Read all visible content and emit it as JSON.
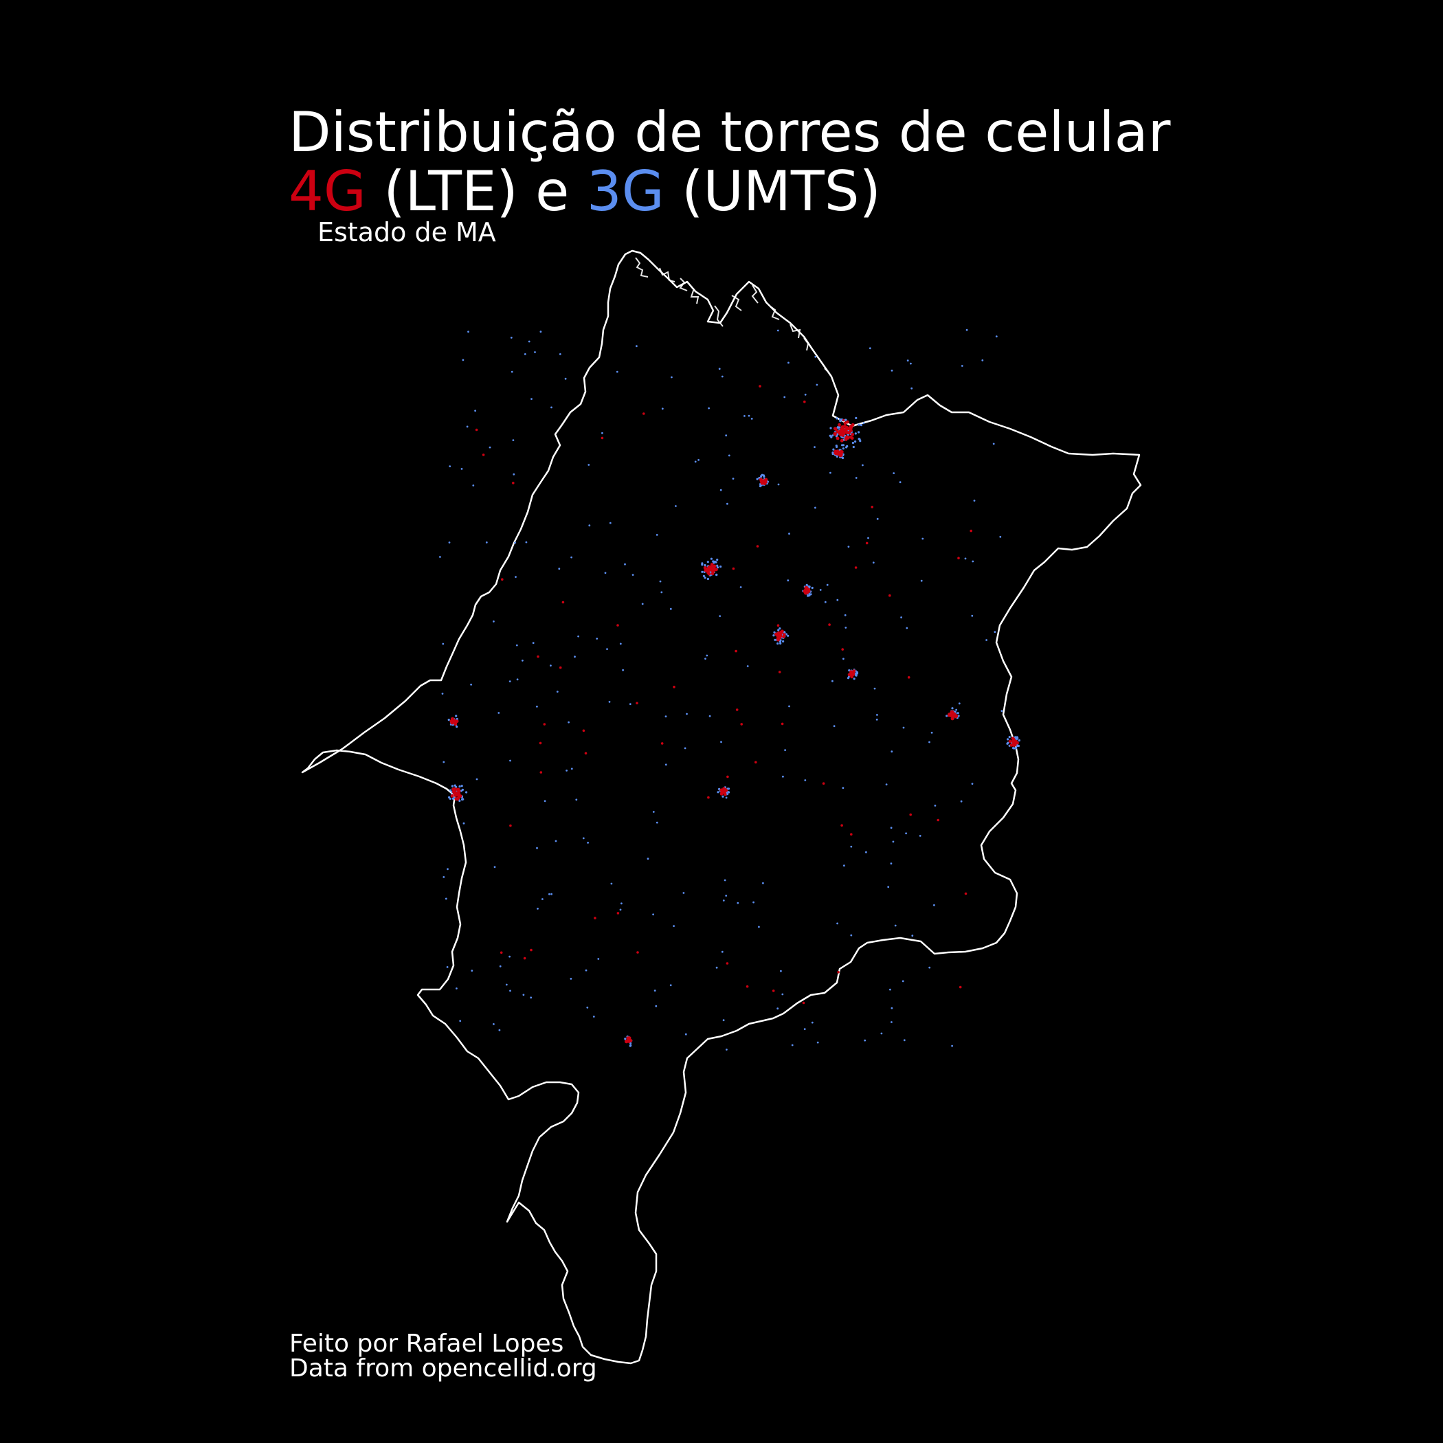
{
  "title": {
    "line1": "Distribuição de torres de celular",
    "lte_label": "4G",
    "lte_paren": "(LTE)",
    "conj": "e",
    "umts_label": "3G",
    "umts_paren": "(UMTS)"
  },
  "subtitle": "Estado de MA",
  "credits": {
    "author": "Feito por Rafael Lopes",
    "source": "Data from opencellid.org"
  },
  "colors": {
    "lte": "#cc0011",
    "umts": "#5b8ef0",
    "border": "#ffffff",
    "background": "#000000"
  },
  "map": {
    "region": "Estado de MA",
    "layers": [
      "state-border",
      "umts-towers",
      "lte-towers"
    ]
  }
}
